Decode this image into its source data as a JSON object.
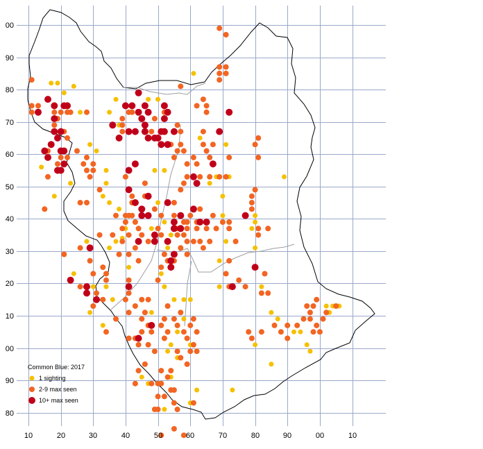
{
  "colors": {
    "grid": "#9aa8c9",
    "outline": "#000000",
    "inner_boundary": "#9e9e9e",
    "one_sighting": "#f5c000",
    "two_to_nine": "#f26522",
    "ten_plus": "#c0001a"
  },
  "axis": {
    "x_labels": [
      "10",
      "20",
      "30",
      "40",
      "50",
      "60",
      "70",
      "80",
      "90",
      "00",
      "10"
    ],
    "y_labels": [
      "00",
      "90",
      "80",
      "70",
      "60",
      "50",
      "40",
      "30",
      "20",
      "10",
      "00",
      "90",
      "80"
    ]
  },
  "legend": {
    "title": "Common Blue:  2017",
    "items": [
      {
        "label": "1 sighting",
        "color": "#f5c000"
      },
      {
        "label": "2-9 max seen",
        "color": "#f26522"
      },
      {
        "label": "10+ max seen",
        "color": "#c0001a"
      }
    ]
  },
  "records": {
    "one": [
      [
        14,
        56
      ],
      [
        17,
        82
      ],
      [
        19,
        82
      ],
      [
        24,
        81
      ],
      [
        21,
        79
      ],
      [
        26,
        73
      ],
      [
        29,
        63
      ],
      [
        31,
        61
      ],
      [
        23,
        51
      ],
      [
        18,
        47
      ],
      [
        28,
        33
      ],
      [
        24,
        23
      ],
      [
        29,
        11
      ],
      [
        33,
        7
      ],
      [
        37,
        77
      ],
      [
        35,
        73
      ],
      [
        38,
        69
      ],
      [
        38,
        43
      ],
      [
        40,
        37
      ],
      [
        39,
        34
      ],
      [
        41,
        25
      ],
      [
        47,
        77
      ],
      [
        50,
        77
      ],
      [
        49,
        55
      ],
      [
        52,
        55
      ],
      [
        50,
        45
      ],
      [
        48,
        37
      ],
      [
        52,
        39
      ],
      [
        54,
        35
      ],
      [
        53,
        31
      ],
      [
        51,
        23
      ],
      [
        52,
        19
      ],
      [
        48,
        11
      ],
      [
        55,
        15
      ],
      [
        58,
        15
      ],
      [
        60,
        15
      ],
      [
        58,
        9
      ],
      [
        56,
        5
      ],
      [
        60,
        1
      ],
      [
        54,
        1
      ],
      [
        53,
        -1
      ],
      [
        56,
        -3
      ],
      [
        46,
        -5
      ],
      [
        45,
        -9
      ],
      [
        47,
        -11
      ],
      [
        54,
        -9
      ],
      [
        52,
        -19
      ],
      [
        60,
        -17
      ],
      [
        62,
        -13
      ],
      [
        61,
        85
      ],
      [
        63,
        65
      ],
      [
        68,
        53
      ],
      [
        66,
        51
      ],
      [
        71,
        63
      ],
      [
        72,
        53
      ],
      [
        70,
        47
      ],
      [
        70,
        41
      ],
      [
        71,
        33
      ],
      [
        69,
        27
      ],
      [
        69,
        19
      ],
      [
        79,
        47
      ],
      [
        80,
        41
      ],
      [
        80,
        39
      ],
      [
        79,
        37
      ],
      [
        80,
        31
      ],
      [
        80,
        1
      ],
      [
        82,
        19
      ],
      [
        87,
        9
      ],
      [
        85,
        11
      ],
      [
        92,
        5
      ],
      [
        96,
        1
      ],
      [
        97,
        -1
      ],
      [
        94,
        5
      ],
      [
        89,
        53
      ],
      [
        85,
        -5
      ],
      [
        102,
        13
      ],
      [
        103,
        11
      ],
      [
        104,
        13
      ],
      [
        106,
        13
      ],
      [
        73,
        -13
      ],
      [
        34,
        19
      ],
      [
        36,
        15
      ],
      [
        30,
        19
      ],
      [
        34,
        55
      ],
      [
        34,
        51
      ],
      [
        35,
        45
      ],
      [
        33,
        47
      ],
      [
        35,
        31
      ],
      [
        37,
        33
      ]
    ],
    "mid": [
      [
        11,
        83
      ],
      [
        11,
        75
      ],
      [
        13,
        75
      ],
      [
        11,
        73
      ],
      [
        18,
        73
      ],
      [
        19,
        71
      ],
      [
        18,
        69
      ],
      [
        20,
        73
      ],
      [
        22,
        73
      ],
      [
        23,
        73
      ],
      [
        28,
        73
      ],
      [
        21,
        67
      ],
      [
        22,
        65
      ],
      [
        17,
        63
      ],
      [
        16,
        61
      ],
      [
        20,
        59
      ],
      [
        22,
        59
      ],
      [
        19,
        57
      ],
      [
        20,
        55
      ],
      [
        16,
        53
      ],
      [
        15,
        43
      ],
      [
        25,
        61
      ],
      [
        28,
        59
      ],
      [
        27,
        57
      ],
      [
        30,
        57
      ],
      [
        28,
        55
      ],
      [
        30,
        55
      ],
      [
        26,
        45
      ],
      [
        26,
        31
      ],
      [
        29,
        31
      ],
      [
        29,
        27
      ],
      [
        32,
        35
      ],
      [
        36,
        35
      ],
      [
        33,
        25
      ],
      [
        34,
        23
      ],
      [
        26,
        19
      ],
      [
        28,
        17
      ],
      [
        30,
        13
      ],
      [
        31,
        17
      ],
      [
        33,
        15
      ],
      [
        21,
        29
      ],
      [
        39,
        71
      ],
      [
        41,
        73
      ],
      [
        39,
        69
      ],
      [
        39,
        67
      ],
      [
        42,
        73
      ],
      [
        44,
        73
      ],
      [
        46,
        75
      ],
      [
        46,
        69
      ],
      [
        49,
        71
      ],
      [
        48,
        67
      ],
      [
        52,
        71
      ],
      [
        52,
        73
      ],
      [
        56,
        69
      ],
      [
        57,
        67
      ],
      [
        57,
        63
      ],
      [
        54,
        63
      ],
      [
        55,
        59
      ],
      [
        59,
        57
      ],
      [
        59,
        53
      ],
      [
        62,
        57
      ],
      [
        64,
        67
      ],
      [
        64,
        63
      ],
      [
        65,
        61
      ],
      [
        67,
        63
      ],
      [
        66,
        59
      ],
      [
        63,
        53
      ],
      [
        66,
        53
      ],
      [
        69,
        53
      ],
      [
        71,
        53
      ],
      [
        64,
        77
      ],
      [
        65,
        75
      ],
      [
        57,
        81
      ],
      [
        65,
        73
      ],
      [
        69,
        87
      ],
      [
        71,
        87
      ],
      [
        69,
        85
      ],
      [
        71,
        85
      ],
      [
        69,
        83
      ],
      [
        71,
        97
      ],
      [
        69,
        99
      ],
      [
        62,
        75
      ],
      [
        58,
        61
      ],
      [
        56,
        61
      ],
      [
        61,
        59
      ],
      [
        58,
        51
      ],
      [
        62,
        51
      ],
      [
        57,
        49
      ],
      [
        55,
        45
      ],
      [
        55,
        41
      ],
      [
        58,
        39
      ],
      [
        56,
        37
      ],
      [
        56,
        35
      ],
      [
        58,
        35
      ],
      [
        59,
        33
      ],
      [
        57,
        31
      ],
      [
        55,
        27
      ],
      [
        59,
        29
      ],
      [
        53,
        27
      ],
      [
        52,
        29
      ],
      [
        53,
        33
      ],
      [
        51,
        35
      ],
      [
        50,
        37
      ],
      [
        51,
        41
      ],
      [
        49,
        43
      ],
      [
        46,
        47
      ],
      [
        46,
        51
      ],
      [
        43,
        39
      ],
      [
        44,
        37
      ],
      [
        45,
        35
      ],
      [
        47,
        33
      ],
      [
        49,
        33
      ],
      [
        40,
        53
      ],
      [
        42,
        47
      ],
      [
        42,
        45
      ],
      [
        42,
        41
      ],
      [
        40,
        41
      ],
      [
        40,
        39
      ],
      [
        37,
        41
      ],
      [
        39,
        37
      ],
      [
        41,
        35
      ],
      [
        39,
        33
      ],
      [
        43,
        31
      ],
      [
        41,
        29
      ],
      [
        44,
        27
      ],
      [
        41,
        21
      ],
      [
        41,
        17
      ],
      [
        40,
        15
      ],
      [
        41,
        11
      ],
      [
        43,
        13
      ],
      [
        45,
        15
      ],
      [
        47,
        15
      ],
      [
        46,
        11
      ],
      [
        45,
        9
      ],
      [
        47,
        7
      ],
      [
        45,
        5
      ],
      [
        43,
        3
      ],
      [
        41,
        3
      ],
      [
        44,
        1
      ],
      [
        47,
        1
      ],
      [
        48,
        5
      ],
      [
        52,
        9
      ],
      [
        51,
        7
      ],
      [
        53,
        5
      ],
      [
        52,
        3
      ],
      [
        55,
        9
      ],
      [
        57,
        11
      ],
      [
        56,
        7
      ],
      [
        58,
        5
      ],
      [
        60,
        7
      ],
      [
        61,
        9
      ],
      [
        62,
        5
      ],
      [
        61,
        1
      ],
      [
        60,
        -1
      ],
      [
        57,
        -3
      ],
      [
        51,
        -7
      ],
      [
        49,
        -1
      ],
      [
        54,
        -7
      ],
      [
        50,
        -11
      ],
      [
        52,
        -15
      ],
      [
        50,
        -15
      ],
      [
        55,
        -17
      ],
      [
        54,
        -13
      ],
      [
        53,
        -9
      ],
      [
        48,
        -11
      ],
      [
        44,
        -7
      ],
      [
        43,
        -11
      ],
      [
        46,
        -5
      ],
      [
        49,
        -19
      ],
      [
        50,
        -19
      ],
      [
        55,
        -25
      ],
      [
        51,
        -27
      ],
      [
        72,
        59
      ],
      [
        67,
        41
      ],
      [
        65,
        37
      ],
      [
        62,
        37
      ],
      [
        63,
        33
      ],
      [
        64,
        31
      ],
      [
        61,
        33
      ],
      [
        62,
        39
      ],
      [
        63,
        43
      ],
      [
        60,
        41
      ],
      [
        59,
        39
      ],
      [
        59,
        37
      ],
      [
        66,
        33
      ],
      [
        68,
        37
      ],
      [
        70,
        39
      ],
      [
        72,
        39
      ],
      [
        72,
        37
      ],
      [
        74,
        33
      ],
      [
        75,
        21
      ],
      [
        77,
        19
      ],
      [
        72,
        27
      ],
      [
        71,
        23
      ],
      [
        72,
        19
      ],
      [
        79,
        43
      ],
      [
        79,
        45
      ],
      [
        80,
        49
      ],
      [
        79,
        47
      ],
      [
        81,
        37
      ],
      [
        84,
        37
      ],
      [
        82,
        17
      ],
      [
        83,
        23
      ],
      [
        84,
        17
      ],
      [
        81,
        35
      ],
      [
        78,
        5
      ],
      [
        79,
        3
      ],
      [
        82,
        5
      ],
      [
        86,
        7
      ],
      [
        88,
        5
      ],
      [
        90,
        7
      ],
      [
        90,
        3
      ],
      [
        93,
        7
      ],
      [
        95,
        9
      ],
      [
        96,
        13
      ],
      [
        97,
        11
      ],
      [
        98,
        5
      ],
      [
        97,
        9
      ],
      [
        99,
        7
      ],
      [
        98,
        13
      ],
      [
        99,
        15
      ],
      [
        101,
        9
      ],
      [
        102,
        11
      ],
      [
        100,
        5
      ],
      [
        105,
        13
      ],
      [
        80,
        63
      ],
      [
        81,
        65
      ],
      [
        81,
        59
      ],
      [
        58,
        -27
      ],
      [
        61,
        -17
      ],
      [
        56,
        -19
      ],
      [
        55,
        -13
      ],
      [
        51,
        -11
      ],
      [
        59,
        -5
      ],
      [
        56,
        -1
      ],
      [
        62,
        -1
      ],
      [
        38,
        29
      ],
      [
        41,
        41
      ],
      [
        50,
        21
      ],
      [
        51,
        25
      ],
      [
        53,
        13
      ],
      [
        59,
        3
      ],
      [
        30,
        23
      ],
      [
        34,
        21
      ],
      [
        37,
        9
      ],
      [
        34,
        5
      ],
      [
        32,
        49
      ],
      [
        29,
        53
      ],
      [
        28,
        45
      ]
    ],
    "high": [
      [
        21,
        75
      ],
      [
        18,
        75
      ],
      [
        22,
        75
      ],
      [
        13,
        73
      ],
      [
        18,
        71
      ],
      [
        18,
        67
      ],
      [
        20,
        67
      ],
      [
        17,
        63
      ],
      [
        20,
        61
      ],
      [
        21,
        61
      ],
      [
        16,
        59
      ],
      [
        19,
        55
      ],
      [
        20,
        55
      ],
      [
        21,
        57
      ],
      [
        15,
        61
      ],
      [
        19,
        65
      ],
      [
        16,
        77
      ],
      [
        40,
        75
      ],
      [
        42,
        75
      ],
      [
        44,
        79
      ],
      [
        46,
        75
      ],
      [
        44,
        73
      ],
      [
        47,
        73
      ],
      [
        52,
        75
      ],
      [
        53,
        73
      ],
      [
        52,
        71
      ],
      [
        45,
        71
      ],
      [
        41,
        67
      ],
      [
        43,
        67
      ],
      [
        46,
        67
      ],
      [
        46,
        69
      ],
      [
        47,
        65
      ],
      [
        49,
        65
      ],
      [
        51,
        67
      ],
      [
        52,
        67
      ],
      [
        55,
        67
      ],
      [
        53,
        63
      ],
      [
        50,
        65
      ],
      [
        51,
        63
      ],
      [
        38,
        65
      ],
      [
        43,
        57
      ],
      [
        41,
        55
      ],
      [
        41,
        49
      ],
      [
        43,
        45
      ],
      [
        45,
        43
      ],
      [
        45,
        41
      ],
      [
        47,
        41
      ],
      [
        47,
        47
      ],
      [
        44,
        33
      ],
      [
        49,
        35
      ],
      [
        49,
        33
      ],
      [
        53,
        45
      ],
      [
        55,
        39
      ],
      [
        55,
        37
      ],
      [
        57,
        37
      ],
      [
        53,
        33
      ],
      [
        57,
        41
      ],
      [
        61,
        43
      ],
      [
        63,
        39
      ],
      [
        65,
        39
      ],
      [
        62,
        51
      ],
      [
        61,
        53
      ],
      [
        67,
        57
      ],
      [
        69,
        67
      ],
      [
        72,
        73
      ],
      [
        54,
        25
      ],
      [
        54,
        27
      ],
      [
        29,
        31
      ],
      [
        28,
        19
      ],
      [
        28,
        17
      ],
      [
        31,
        15
      ],
      [
        23,
        21
      ],
      [
        41,
        19
      ],
      [
        48,
        7
      ],
      [
        44,
        3
      ],
      [
        80,
        25
      ],
      [
        77,
        41
      ],
      [
        73,
        19
      ],
      [
        55,
        29
      ],
      [
        36,
        69
      ]
    ]
  }
}
